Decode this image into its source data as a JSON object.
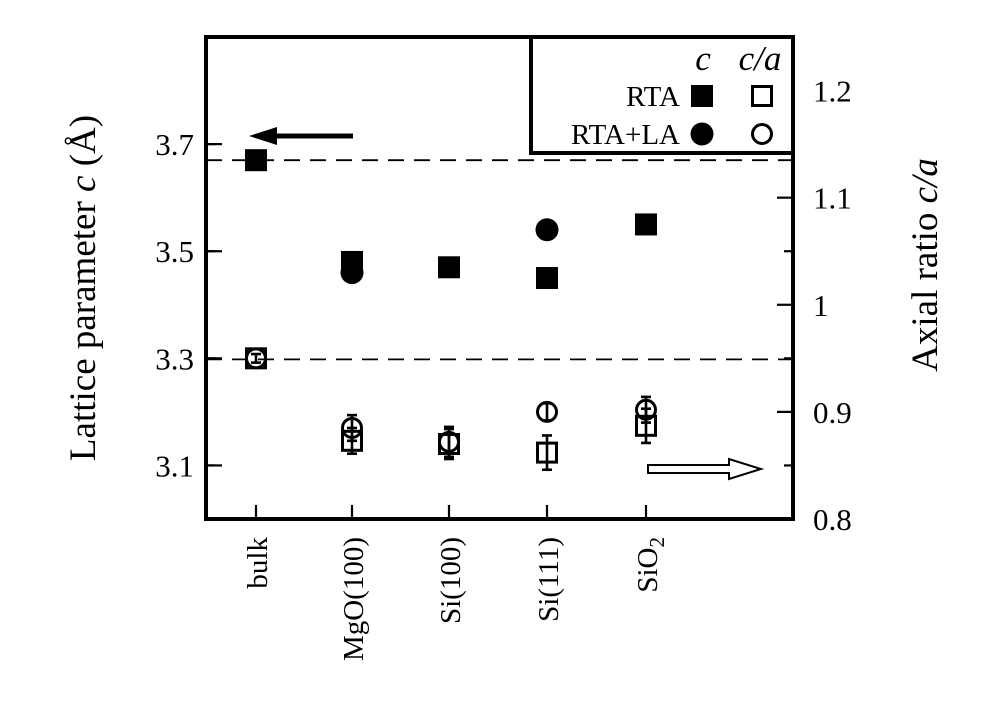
{
  "chart_data": {
    "type": "scatter",
    "categories": [
      "bulk",
      "MgO(100)",
      "Si(100)",
      "Si(111)",
      "SiO2"
    ],
    "category_label_sub": {
      "SiO2": [
        "SiO",
        "2"
      ]
    },
    "left_axis": {
      "label_prefix": "Lattice parameter ",
      "label_symbol": "c",
      "label_suffix": " (Å)",
      "ylim": [
        3.0,
        3.9
      ],
      "ticks": [
        3.1,
        3.3,
        3.5,
        3.7
      ],
      "tick_labels": [
        "3.1",
        "3.3",
        "3.5",
        "3.7"
      ]
    },
    "right_axis": {
      "label_prefix": "Axial ratio ",
      "label_symbol": "c/a",
      "ylim": [
        0.8,
        1.25
      ],
      "ticks": [
        0.8,
        0.9,
        1.0,
        1.1,
        1.2
      ],
      "tick_labels": [
        "0.8",
        "0.9",
        "1",
        "1.1",
        "1.2"
      ]
    },
    "reference_lines": [
      {
        "axis": "left",
        "value": 3.67
      },
      {
        "axis": "right",
        "value": 0.949
      }
    ],
    "series": [
      {
        "name": "RTA",
        "quantity": "c",
        "axis": "left",
        "marker": "filled-square",
        "values": [
          3.67,
          3.48,
          3.47,
          3.45,
          3.55
        ],
        "errors": [
          0,
          0,
          0,
          0,
          0
        ]
      },
      {
        "name": "RTA+LA",
        "quantity": "c",
        "axis": "left",
        "marker": "filled-circle",
        "values": [
          null,
          3.46,
          null,
          3.54,
          null
        ],
        "errors": [
          0,
          0,
          0,
          0,
          0
        ]
      },
      {
        "name": "RTA",
        "quantity": "c/a",
        "axis": "right",
        "marker": "open-square",
        "values": [
          0.95,
          0.873,
          0.87,
          0.862,
          0.887
        ],
        "errors": [
          0,
          0.012,
          0.014,
          0.016,
          0.016
        ]
      },
      {
        "name": "RTA+LA",
        "quantity": "c/a",
        "axis": "right",
        "marker": "open-circle",
        "values": [
          0.95,
          0.885,
          0.872,
          0.9,
          0.902
        ],
        "errors": [
          0.004,
          0.012,
          0.014,
          0.008,
          0.012
        ]
      }
    ],
    "legend": {
      "placement": "top-right",
      "column_headers": [
        "c",
        "c/a"
      ],
      "rows": [
        "RTA",
        "RTA+LA"
      ]
    },
    "annotations": [
      {
        "type": "arrow",
        "style": "filled",
        "direction": "left",
        "points_to": "left axis"
      },
      {
        "type": "arrow",
        "style": "hollow",
        "direction": "right",
        "points_to": "right axis"
      }
    ],
    "grid": false
  }
}
